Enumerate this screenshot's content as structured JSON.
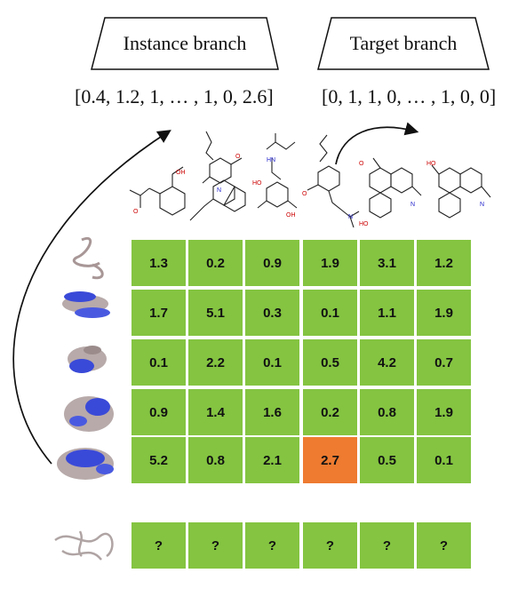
{
  "instance_branch": {
    "label": "Instance branch",
    "vector": "[0.4, 1.2, 1, … , 1, 0, 2.6]"
  },
  "target_branch": {
    "label": "Target branch",
    "vector": "[0, 1, 1, 0, … , 1, 0, 0]"
  },
  "matrix": {
    "rows": [
      [
        "1.3",
        "0.2",
        "0.9",
        "1.9",
        "3.1",
        "1.2"
      ],
      [
        "1.7",
        "5.1",
        "0.3",
        "0.1",
        "1.1",
        "1.9"
      ],
      [
        "0.1",
        "2.2",
        "0.1",
        "0.5",
        "4.2",
        "0.7"
      ],
      [
        "0.9",
        "1.4",
        "1.6",
        "0.2",
        "0.8",
        "1.9"
      ],
      [
        "5.2",
        "0.8",
        "2.1",
        "2.7",
        "0.5",
        "0.1"
      ]
    ],
    "highlight": {
      "row": 4,
      "col": 3,
      "color": "#ee7b30"
    },
    "cell_color": "#84c441"
  },
  "query_row": [
    "?",
    "?",
    "?",
    "?",
    "?",
    "?"
  ],
  "molecules": [
    {
      "atoms": [
        "OH",
        "O"
      ],
      "icon": "aspirin-molecule-icon"
    },
    {
      "atoms": [
        "O",
        "N"
      ],
      "icon": "sildenafil-molecule-icon"
    },
    {
      "atoms": [
        "HO",
        "HN",
        "OH"
      ],
      "icon": "salbutamol-molecule-icon"
    },
    {
      "atoms": [
        "O",
        "N",
        "OH"
      ],
      "icon": "acebutolol-molecule-icon"
    },
    {
      "atoms": [
        "O",
        "HO",
        "N",
        "CH3"
      ],
      "icon": "codeine-molecule-icon"
    },
    {
      "atoms": [
        "HO",
        "O",
        "N",
        "CH3"
      ],
      "icon": "morphine-molecule-icon"
    }
  ],
  "proteins": [
    {
      "icon": "small-protein-icon"
    },
    {
      "icon": "protein-complex-icon"
    },
    {
      "icon": "protein-complex-icon"
    },
    {
      "icon": "protein-complex-icon"
    },
    {
      "icon": "protein-complex-icon"
    }
  ],
  "query_protein": {
    "icon": "query-protein-icon"
  }
}
